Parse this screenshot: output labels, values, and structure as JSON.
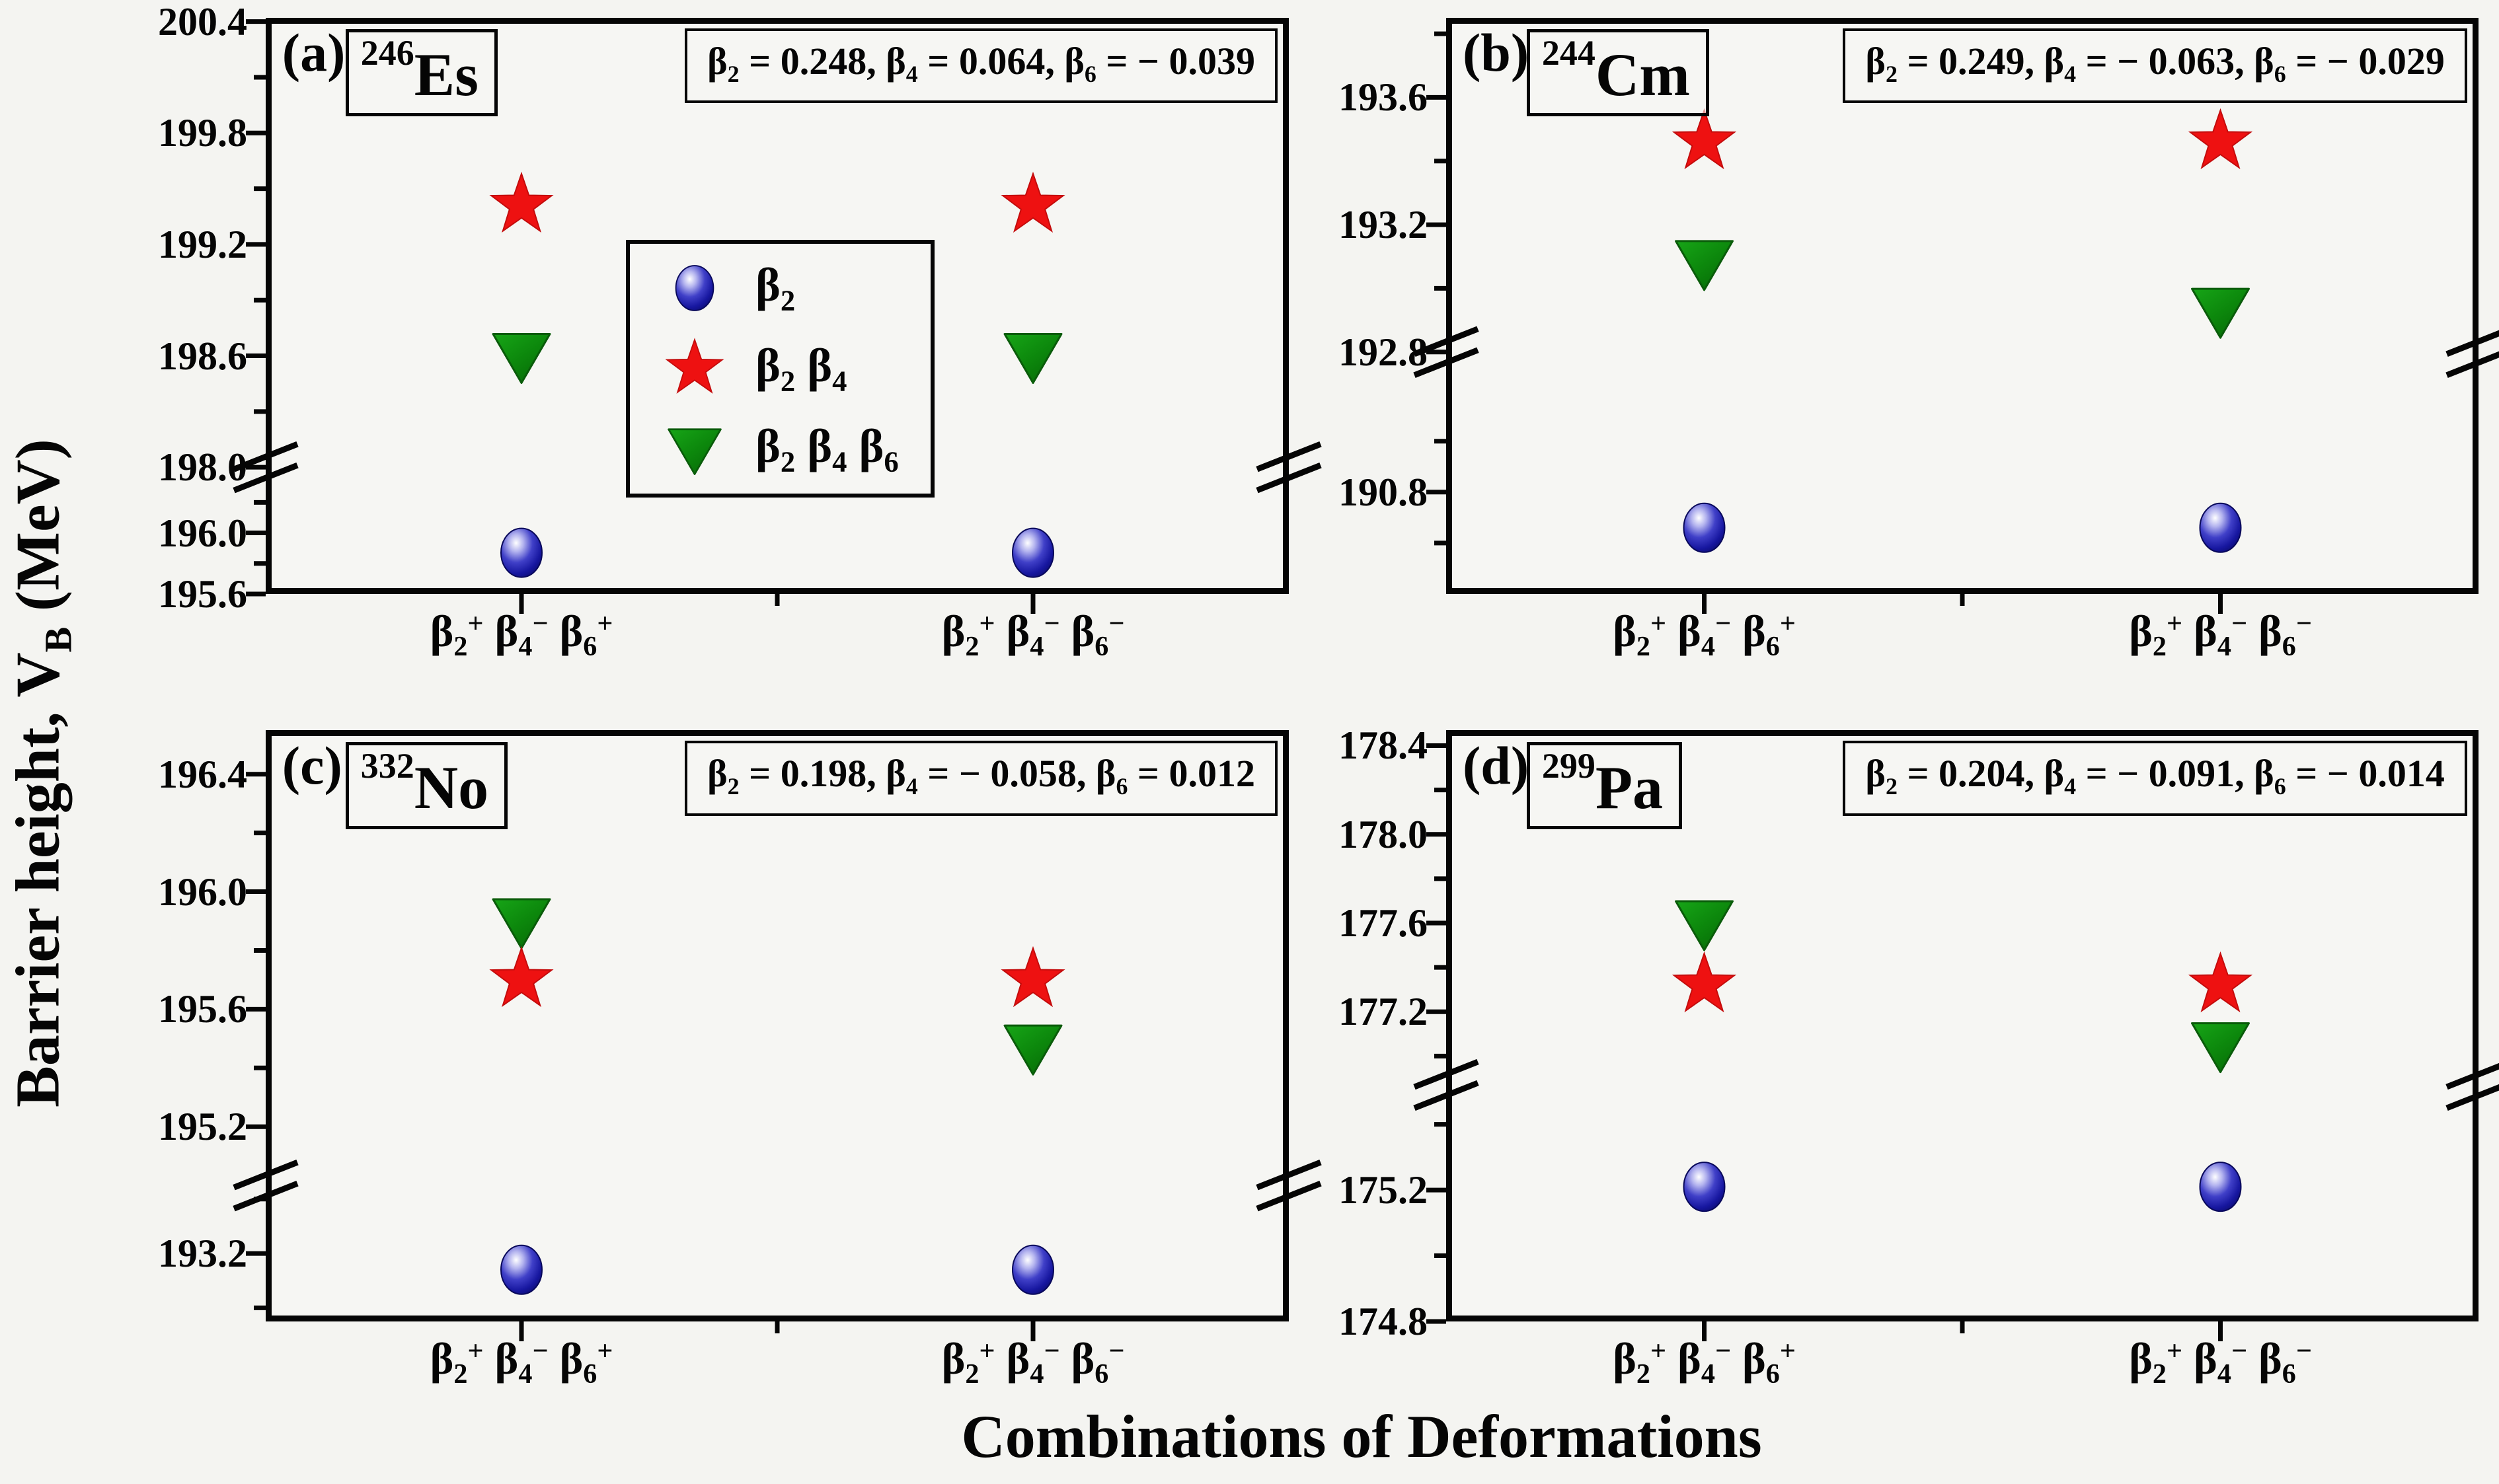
{
  "figure": {
    "x_axis_title": "Combinations of Deformations",
    "y_axis_title_rich": [
      {
        "t": "Barrier height, V"
      },
      {
        "t": "B",
        "s": "sub"
      },
      {
        "t": " (MeV)"
      }
    ],
    "y_axis_title_plain": "Barrier height, V_B (MeV)"
  },
  "legend": {
    "items": [
      {
        "marker": "sphere-icon",
        "series": "beta2",
        "label_plain": "β2",
        "label_rich": [
          {
            "t": "β"
          },
          {
            "t": "2",
            "s": "sub"
          }
        ]
      },
      {
        "marker": "star-icon",
        "series": "beta2_beta4",
        "label_plain": "β2 β4",
        "label_rich": [
          {
            "t": "β"
          },
          {
            "t": "2",
            "s": "sub"
          },
          {
            "t": " β"
          },
          {
            "t": "4",
            "s": "sub"
          }
        ]
      },
      {
        "marker": "triangle-down-icon",
        "series": "beta2_beta4_beta6",
        "label_plain": "β2 β4 β6",
        "label_rich": [
          {
            "t": "β"
          },
          {
            "t": "2",
            "s": "sub"
          },
          {
            "t": " β"
          },
          {
            "t": "4",
            "s": "sub"
          },
          {
            "t": " β"
          },
          {
            "t": "6",
            "s": "sub"
          }
        ]
      }
    ]
  },
  "chart_data": {
    "type": "scatter",
    "x_category_names": [
      "β2+ β4− β6+",
      "β2+ β4− β6−"
    ],
    "x_categories_rich": [
      [
        {
          "t": "β"
        },
        {
          "t": "2",
          "s": "sub"
        },
        {
          "t": "+",
          "s": "sup"
        },
        {
          "t": " "
        },
        {
          "t": "β"
        },
        {
          "t": "4",
          "s": "sub"
        },
        {
          "t": "−",
          "s": "sup"
        },
        {
          "t": " "
        },
        {
          "t": "β"
        },
        {
          "t": "6",
          "s": "sub"
        },
        {
          "t": "+",
          "s": "sup"
        }
      ],
      [
        {
          "t": "β"
        },
        {
          "t": "2",
          "s": "sub"
        },
        {
          "t": "+",
          "s": "sup"
        },
        {
          "t": " "
        },
        {
          "t": "β"
        },
        {
          "t": "4",
          "s": "sub"
        },
        {
          "t": "−",
          "s": "sup"
        },
        {
          "t": " "
        },
        {
          "t": "β"
        },
        {
          "t": "6",
          "s": "sub"
        },
        {
          "t": "−",
          "s": "sup"
        }
      ]
    ],
    "series_colors": {
      "beta2": "#1a1ab4",
      "beta2_beta4": "#ee1111",
      "beta2_beta4_beta6": "#0d870d"
    },
    "panels": [
      {
        "corner_label": "(a)",
        "nuclide": {
          "mass": "246",
          "symbol": "Es"
        },
        "deformations": {
          "beta2": "0.248",
          "beta4": "0.064",
          "beta6": "− 0.039"
        },
        "annotation_rich": [
          {
            "t": "β"
          },
          {
            "t": "2",
            "s": "sub"
          },
          {
            "t": " = 0.248,  "
          },
          {
            "t": "β"
          },
          {
            "t": "4",
            "s": "sub"
          },
          {
            "t": " = 0.064,  "
          },
          {
            "t": "β"
          },
          {
            "t": "6",
            "s": "sub"
          },
          {
            "t": " = − 0.039"
          }
        ],
        "y_axis": {
          "upper": {
            "range": [
              198.0,
              200.42
            ],
            "majors": [
              198.0,
              198.6,
              199.2,
              199.8,
              200.4
            ],
            "minors": [
              198.3,
              198.9,
              199.5,
              200.1
            ],
            "height_frac": 0.78
          },
          "lower": {
            "range": [
              195.6,
              196.43
            ],
            "majors": [
              195.6,
              196.0
            ],
            "minors": [
              195.8,
              196.2
            ]
          }
        },
        "series": {
          "beta2": [
            195.87,
            195.87
          ],
          "beta2_beta4": [
            199.41,
            199.41
          ],
          "beta2_beta4_beta6": [
            198.6,
            198.6
          ]
        }
      },
      {
        "corner_label": "(b)",
        "nuclide": {
          "mass": "244",
          "symbol": "Cm"
        },
        "deformations": {
          "beta2": "0.249",
          "beta4": "− 0.063",
          "beta6": "− 0.029"
        },
        "annotation_rich": [
          {
            "t": "β"
          },
          {
            "t": "2",
            "s": "sub"
          },
          {
            "t": " = 0.249,  "
          },
          {
            "t": "β"
          },
          {
            "t": "4",
            "s": "sub"
          },
          {
            "t": " = − 0.063,  "
          },
          {
            "t": "β"
          },
          {
            "t": "6",
            "s": "sub"
          },
          {
            "t": " = − 0.029"
          }
        ],
        "y_axis": {
          "upper": {
            "range": [
              192.8,
              193.85
            ],
            "majors": [
              192.8,
              193.2,
              193.6
            ],
            "minors": [
              193.0,
              193.4,
              193.8
            ],
            "height_frac": 0.58
          },
          "lower": {
            "range": [
              190.4,
              191.35
            ],
            "majors": [
              190.8
            ],
            "minors": [
              190.6,
              191.0
            ]
          }
        },
        "series": {
          "beta2": [
            190.66,
            190.66
          ],
          "beta2_beta4": [
            193.46,
            193.46
          ],
          "beta2_beta4_beta6": [
            193.08,
            192.93
          ]
        }
      },
      {
        "corner_label": "(c)",
        "nuclide": {
          "mass": "332",
          "symbol": "No"
        },
        "deformations": {
          "beta2": "0.198",
          "beta4": "− 0.058",
          "beta6": "0.012"
        },
        "annotation_rich": [
          {
            "t": "β"
          },
          {
            "t": "2",
            "s": "sub"
          },
          {
            "t": " = 0.198,  "
          },
          {
            "t": "β"
          },
          {
            "t": "4",
            "s": "sub"
          },
          {
            "t": " = − 0.058,  "
          },
          {
            "t": "β"
          },
          {
            "t": "6",
            "s": "sub"
          },
          {
            "t": " = 0.012"
          }
        ],
        "y_axis": {
          "upper": {
            "range": [
              195.0,
              196.55
            ],
            "majors": [
              195.2,
              195.6,
              196.0,
              196.4
            ],
            "minors": [
              195.4,
              195.8,
              196.2
            ],
            "height_frac": 0.77
          },
          "lower": {
            "range": [
              192.95,
              193.45
            ],
            "majors": [
              193.2
            ],
            "minors": [
              193.0,
              193.4
            ]
          }
        },
        "series": {
          "beta2": [
            193.14,
            193.14
          ],
          "beta2_beta4": [
            195.7,
            195.7
          ],
          "beta2_beta4_beta6": [
            195.9,
            195.47
          ]
        }
      },
      {
        "corner_label": "(d)",
        "nuclide": {
          "mass": "299",
          "symbol": "Pa"
        },
        "deformations": {
          "beta2": "0.204",
          "beta4": "− 0.091",
          "beta6": "− 0.014"
        },
        "annotation_rich": [
          {
            "t": "β"
          },
          {
            "t": "2",
            "s": "sub"
          },
          {
            "t": " = 0.204,  "
          },
          {
            "t": "β"
          },
          {
            "t": "4",
            "s": "sub"
          },
          {
            "t": " = − 0.091,  "
          },
          {
            "t": "β"
          },
          {
            "t": "6",
            "s": "sub"
          },
          {
            "t": " = − 0.014"
          }
        ],
        "y_axis": {
          "upper": {
            "range": [
              176.87,
              178.47
            ],
            "majors": [
              177.2,
              177.6,
              178.0,
              178.4
            ],
            "minors": [
              177.0,
              177.4,
              177.8,
              178.2
            ],
            "height_frac": 0.6
          },
          "lower": {
            "range": [
              174.8,
              175.52
            ],
            "majors": [
              174.8,
              175.2
            ],
            "minors": [
              175.0,
              175.4
            ]
          }
        },
        "series": {
          "beta2": [
            175.21,
            175.21
          ],
          "beta2_beta4": [
            177.32,
            177.32
          ],
          "beta2_beta4_beta6": [
            177.6,
            177.05
          ]
        }
      }
    ]
  }
}
